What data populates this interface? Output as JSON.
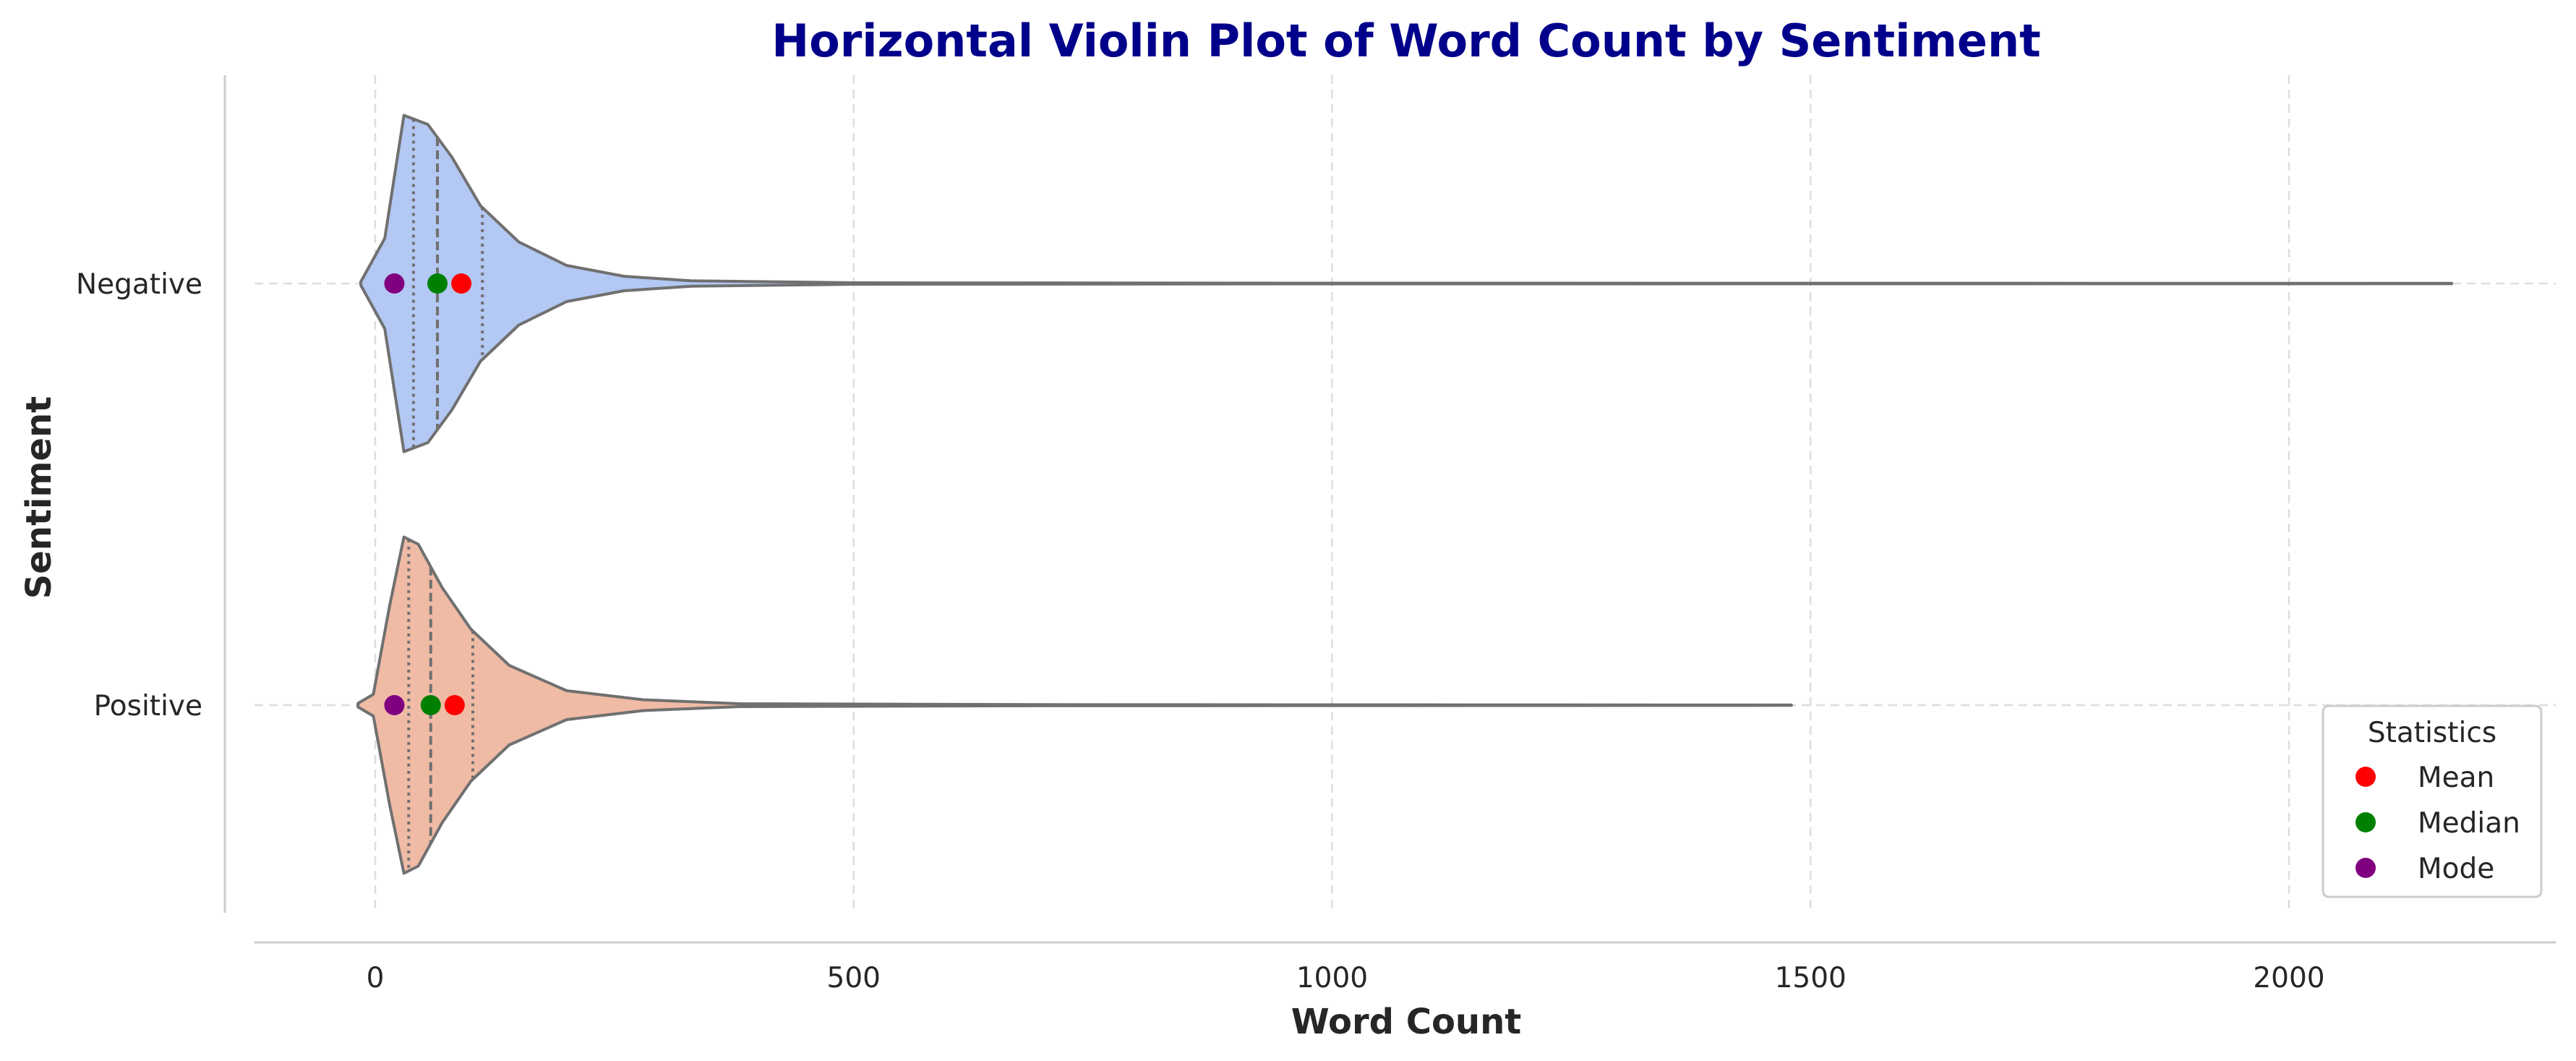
{
  "chart_data": {
    "type": "violin",
    "orientation": "horizontal",
    "title": "Horizontal Violin Plot of Word Count by Sentiment",
    "xlabel": "Word Count",
    "ylabel": "Sentiment",
    "xlim": [
      -160,
      2270
    ],
    "xticks": [
      0,
      500,
      1000,
      1500,
      2000
    ],
    "grid": true,
    "categories": [
      "Negative",
      "Positive"
    ],
    "series": [
      {
        "name": "Negative",
        "color": "#b3c8f3",
        "max": 2170,
        "quartiles": [
          40,
          65,
          112
        ],
        "mean": 90,
        "median": 65,
        "mode": 20,
        "density": [
          [
            -15,
            0.01
          ],
          [
            10,
            0.25
          ],
          [
            30,
            0.93
          ],
          [
            55,
            0.88
          ],
          [
            80,
            0.7
          ],
          [
            110,
            0.43
          ],
          [
            150,
            0.23
          ],
          [
            200,
            0.1
          ],
          [
            260,
            0.04
          ],
          [
            330,
            0.015
          ],
          [
            500,
            0.004
          ],
          [
            1000,
            0.002
          ],
          [
            2170,
            0.001
          ]
        ]
      },
      {
        "name": "Positive",
        "color": "#f0bba5",
        "max": 1480,
        "quartiles": [
          35,
          58,
          102
        ],
        "mean": 83,
        "median": 58,
        "mode": 20,
        "density": [
          [
            -18,
            0.01
          ],
          [
            -2,
            0.06
          ],
          [
            15,
            0.55
          ],
          [
            30,
            0.93
          ],
          [
            45,
            0.89
          ],
          [
            70,
            0.65
          ],
          [
            100,
            0.42
          ],
          [
            140,
            0.22
          ],
          [
            200,
            0.08
          ],
          [
            280,
            0.03
          ],
          [
            380,
            0.008
          ],
          [
            700,
            0.003
          ],
          [
            1480,
            0.001
          ]
        ]
      }
    ],
    "legend": {
      "title": "Statistics",
      "location": "lower right",
      "entries": [
        {
          "label": "Mean",
          "color": "#ff0000"
        },
        {
          "label": "Median",
          "color": "#008000"
        },
        {
          "label": "Mode",
          "color": "#800080"
        }
      ]
    }
  }
}
